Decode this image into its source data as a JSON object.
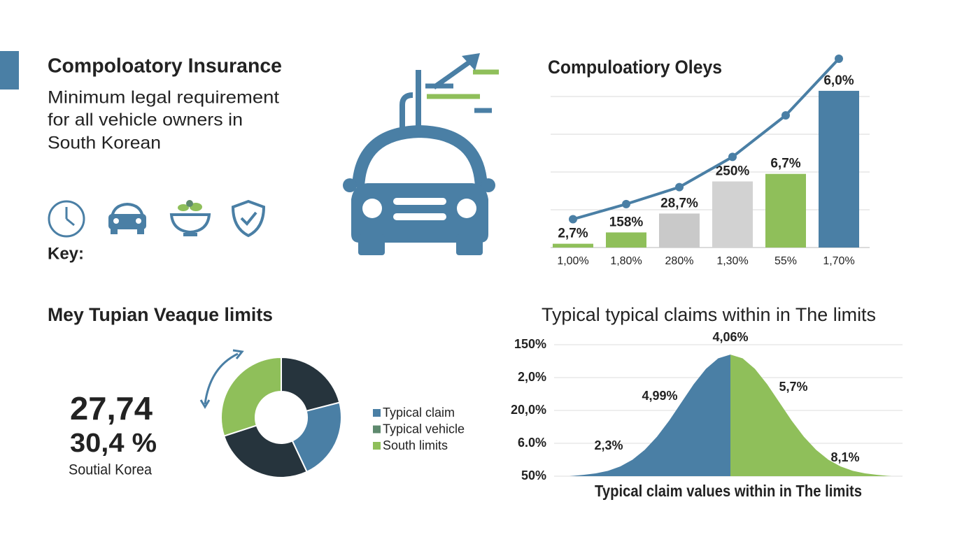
{
  "header": {
    "title": "Compoloatory Insurance",
    "description": [
      "Minimum legal requirement",
      "for all vehicle owners in",
      "South Korean"
    ],
    "key_label": "Key:"
  },
  "stats": {
    "primary": "27,74",
    "secondary": "30,4 %",
    "caption": "Soutial Korea"
  },
  "chart_data": [
    {
      "type": "bar",
      "title": "Compuloatiory Oleys",
      "categories": [
        "1,00%",
        "1,80%",
        "280%",
        "1,30%",
        "55%",
        "1,70%"
      ],
      "ylim": [
        0,
        100
      ],
      "yticks": [
        20,
        40,
        60,
        80
      ],
      "grid": true,
      "annotations": [
        "2,7%",
        "158%",
        "28,7%",
        "250%",
        "6,7%",
        "6,0%"
      ],
      "series": [
        {
          "type": "bar",
          "colors": [
            "#8fbf5a",
            "#8fbf5a",
            "#c9c9c9",
            "#d2d2d2",
            "#8fbf5a",
            "#4a7fa5"
          ],
          "values": [
            2,
            8,
            18,
            35,
            39,
            83
          ]
        },
        {
          "type": "line",
          "color": "#4a7fa5",
          "values": [
            15,
            23,
            32,
            48,
            70,
            100
          ]
        }
      ]
    },
    {
      "type": "donut",
      "title": "Mey Tupian Veaque limits",
      "values": [
        21,
        22,
        27,
        30
      ],
      "colors": [
        "#26343d",
        "#4a7fa5",
        "#26343d",
        "#8fbf5a"
      ],
      "legend": [
        {
          "name": "Typical claim",
          "color": "#4a7fa5"
        },
        {
          "name": "Typical vehicle",
          "color": "#5e8a6e"
        },
        {
          "name": "South limits",
          "color": "#8fbf5a"
        }
      ]
    },
    {
      "type": "area",
      "title": "Typical typical claims within in The limits",
      "xlabel": "Typical claim values within in The limits",
      "xlim": [
        -3,
        3
      ],
      "ylim": [
        0,
        4
      ],
      "yticks": [
        {
          "value": 4,
          "label": "150%"
        },
        {
          "value": 3,
          "label": "2,0%"
        },
        {
          "value": 2,
          "label": "20,0%"
        },
        {
          "value": 1,
          "label": "6.0%"
        },
        {
          "value": 0,
          "label": "50%"
        }
      ],
      "grid": true,
      "annotations": [
        "4,06%",
        "4,99%",
        "5,7%",
        "2,3%",
        "8,1%"
      ],
      "series": [
        {
          "color": "#4a7fa5",
          "x": [
            -3,
            -2.75,
            -2.5,
            -2.25,
            -2,
            -1.75,
            -1.5,
            -1.25,
            -1,
            -0.75,
            -0.5,
            -0.25,
            0
          ],
          "values": [
            0.041,
            0.084,
            0.162,
            0.295,
            0.501,
            0.8,
            1.2,
            1.691,
            2.244,
            2.798,
            3.265,
            3.585,
            3.7
          ]
        },
        {
          "color": "#8fbf5a",
          "x": [
            0,
            0.25,
            0.5,
            0.75,
            1,
            1.25,
            1.5,
            1.75,
            2,
            2.25,
            2.5,
            2.75,
            3
          ],
          "values": [
            3.7,
            3.585,
            3.265,
            2.798,
            2.244,
            1.691,
            1.2,
            0.8,
            0.501,
            0.295,
            0.162,
            0.084,
            0.041
          ]
        }
      ]
    }
  ]
}
